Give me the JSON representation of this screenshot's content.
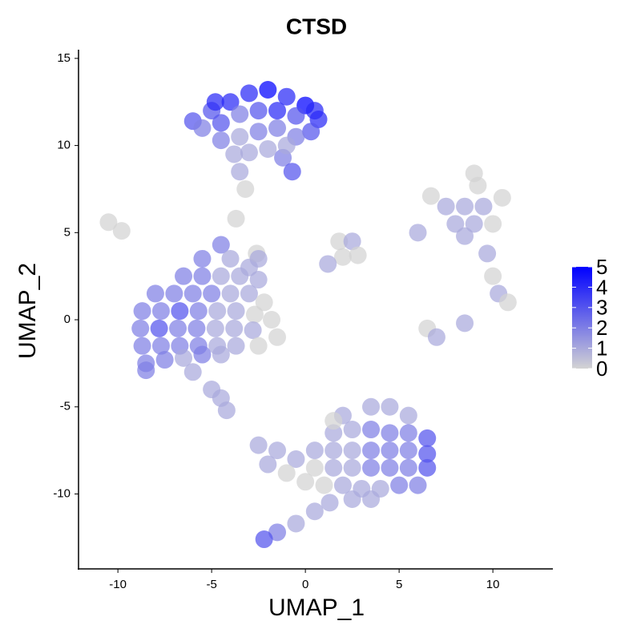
{
  "chart_data": {
    "type": "scatter",
    "title": "CTSD",
    "x_label": "UMAP_1",
    "y_label": "UMAP_2",
    "x": [
      -6,
      -5,
      -4,
      -3,
      -2,
      -1,
      0,
      0.7,
      -5.5,
      -4.5,
      -3.5,
      -2.5,
      -1.5,
      -0.5,
      0.3,
      -4.5,
      -3.5,
      -2.5,
      -1.5,
      -0.5,
      -3.8,
      -3,
      -1.2,
      -0.7,
      -3.5,
      -3.2,
      -2,
      0.5,
      -1,
      -4.8,
      -4.5,
      -5.5,
      -4,
      -3,
      -6.5,
      -5.5,
      -4.5,
      -3.5,
      -2.5,
      -8,
      -7,
      -6,
      -5,
      -4,
      -3,
      -2.2,
      -8.7,
      -7.7,
      -6.7,
      -5.7,
      -4.7,
      -3.7,
      -2.7,
      -1.8,
      -8.8,
      -7.8,
      -6.8,
      -5.8,
      -4.8,
      -3.8,
      -2.8,
      -1.5,
      -8.7,
      -7.7,
      -6.7,
      -5.7,
      -4.7,
      -3.7,
      -8.5,
      -7.5,
      -6.5,
      -5.5,
      -4.5,
      -8.5,
      -6,
      -5,
      -4.5,
      -4.2,
      -2.6,
      -2.5,
      2,
      3.5,
      4.5,
      5.5,
      1.5,
      2.5,
      3.5,
      4.5,
      5.5,
      6.5,
      0.5,
      1.5,
      2.5,
      3.5,
      4.5,
      5.5,
      6.5,
      -2.5,
      -1.5,
      -0.5,
      0.5,
      1.5,
      2.5,
      3.5,
      4.5,
      5.5,
      6.5,
      -2,
      -1,
      0,
      1,
      2,
      3,
      4,
      5,
      6,
      2.5,
      3.5,
      1.5,
      0.5,
      -0.5,
      -1.5,
      -2.2,
      1.3,
      1.8,
      2.5,
      2,
      2.8,
      1.2,
      7.5,
      8.5,
      9.5,
      8,
      9,
      10,
      8.5,
      9.2,
      9,
      10.5,
      6.7,
      6,
      10.3,
      10.8,
      10,
      9.7,
      6.5,
      7,
      8.5,
      -10.5,
      -9.8,
      -3.7,
      -2.5
    ],
    "y": [
      11.4,
      12,
      12.5,
      13,
      13.2,
      12.8,
      12.3,
      11.5,
      11,
      11.3,
      11.8,
      12,
      12,
      11.7,
      10.8,
      10.3,
      10.5,
      10.8,
      11,
      10.5,
      9.5,
      9.6,
      9.3,
      8.5,
      8.5,
      7.5,
      9.8,
      12,
      10,
      12.5,
      4.3,
      3.5,
      3.5,
      3,
      2.5,
      2.5,
      2.5,
      2.5,
      2.3,
      1.5,
      1.5,
      1.5,
      1.5,
      1.5,
      1.5,
      1,
      0.5,
      0.5,
      0.5,
      0.5,
      0.5,
      0.5,
      0.3,
      0,
      -0.5,
      -0.5,
      -0.5,
      -0.5,
      -0.5,
      -0.5,
      -0.6,
      -1,
      -1.5,
      -1.5,
      -1.5,
      -1.5,
      -1.5,
      -1.5,
      -2.5,
      -2.3,
      -2.2,
      -2,
      -2,
      -2.9,
      -3,
      -4,
      -4.5,
      -5.2,
      3.8,
      -1.5,
      -5.5,
      -5,
      -5,
      -5.5,
      -6.5,
      -6.3,
      -6.3,
      -6.5,
      -6.5,
      -6.8,
      -7.5,
      -7.5,
      -7.5,
      -7.5,
      -7.5,
      -7.5,
      -7.7,
      -7.2,
      -7.5,
      -8,
      -8.5,
      -8.5,
      -8.5,
      -8.5,
      -8.5,
      -8.5,
      -8.5,
      -8.3,
      -8.8,
      -9.3,
      -9.5,
      -9.5,
      -9.7,
      -9.7,
      -9.5,
      -9.5,
      -10.3,
      -10.3,
      -5.8,
      -11,
      -11.7,
      -12.2,
      -12.6,
      -10.5,
      4.5,
      4.5,
      3.6,
      3.7,
      3.2,
      6.5,
      6.5,
      6.5,
      5.5,
      5.5,
      5.5,
      4.8,
      7.7,
      8.4,
      7,
      7.1,
      5,
      1.5,
      1,
      2.5,
      3.8,
      -0.5,
      -1,
      -0.2,
      5.6,
      5.1,
      5.8,
      3.5
    ],
    "values": [
      3,
      3,
      4,
      4,
      5,
      4,
      5,
      4,
      2,
      3,
      2,
      3,
      4,
      3,
      3,
      2,
      1,
      2,
      2,
      2,
      1,
      1,
      2,
      3,
      1,
      0,
      1,
      4,
      1,
      4,
      2,
      2,
      1,
      1,
      2,
      2,
      1,
      1,
      1,
      2,
      2,
      2,
      2,
      1,
      1,
      0,
      2,
      2,
      3,
      2,
      1,
      1,
      0,
      0,
      2,
      3,
      2,
      2,
      1,
      1,
      1,
      0,
      2,
      2,
      2,
      2,
      1,
      1,
      2,
      2,
      1,
      2,
      1,
      2,
      1,
      1,
      1,
      1,
      0,
      0,
      1,
      1,
      1,
      1,
      1,
      1,
      2,
      2,
      2,
      3,
      1,
      1,
      1,
      2,
      2,
      2,
      3,
      1,
      1,
      1,
      0,
      1,
      1,
      2,
      2,
      2,
      3,
      1,
      0,
      0,
      0,
      1,
      1,
      1,
      2,
      2,
      1,
      1,
      0,
      1,
      1,
      2,
      3,
      1,
      0,
      1,
      0,
      0,
      1,
      1,
      1,
      1,
      1,
      1,
      0,
      1,
      0,
      0,
      0,
      0,
      1,
      1,
      0,
      0,
      1,
      0,
      1,
      1,
      0,
      0,
      0,
      1
    ],
    "xlim": [
      -12.1,
      13.2
    ],
    "ylim": [
      -14.3,
      15.5
    ],
    "xticks": [
      -10,
      -5,
      0,
      5,
      10
    ],
    "yticks": [
      -10,
      -5,
      0,
      5,
      10,
      15
    ],
    "color_low": "#d3d3d3",
    "color_high": "#0000ff",
    "colorlim": [
      0,
      5
    ],
    "colorbar_ticks": [
      0,
      1,
      2,
      3,
      4,
      5
    ],
    "grid": false
  }
}
